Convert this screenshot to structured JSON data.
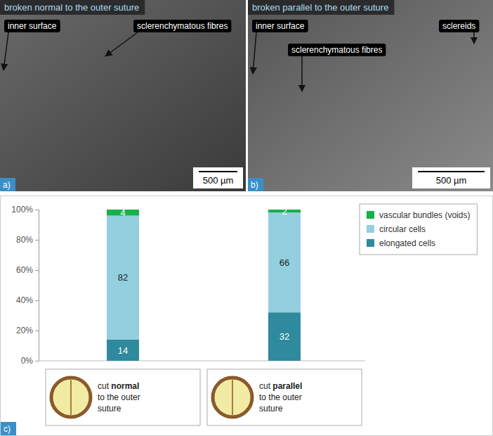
{
  "figure": {
    "panels": [
      {
        "letter": "a)",
        "title": "broken normal to the outer suture",
        "annotations": [
          "inner surface",
          "sclerenchymatous fibres"
        ],
        "scale_bar": "500 µm"
      },
      {
        "letter": "b)",
        "title": "broken parallel to the outer suture",
        "annotations": [
          "inner surface",
          "sclerenchymatous fibres",
          "sclereids"
        ],
        "scale_bar": "500 µm"
      }
    ]
  },
  "chart_data": {
    "type": "bar",
    "stacked": true,
    "orientation": "vertical",
    "annotations": [
      "c)"
    ],
    "categories": [
      "cut normal to the outer suture",
      "cut parallel to the outer suture"
    ],
    "series": [
      {
        "name": "elongated cells",
        "color": "#2e8a9c",
        "values": [
          14,
          32
        ]
      },
      {
        "name": "circular cells",
        "color": "#94cfe0",
        "values": [
          82,
          66
        ]
      },
      {
        "name": "vascular bundles (voids)",
        "color": "#19b04b",
        "values": [
          4,
          2
        ]
      }
    ],
    "ylim": [
      0,
      100
    ],
    "yticks": [
      {
        "value": 0,
        "label": "0%"
      },
      {
        "value": 20,
        "label": "20%"
      },
      {
        "value": 40,
        "label": "40%"
      },
      {
        "value": 60,
        "label": "60%"
      },
      {
        "value": 80,
        "label": "80%"
      },
      {
        "value": 100,
        "label": "100%"
      }
    ],
    "grid": false,
    "data_labels": true,
    "legend": "right"
  }
}
